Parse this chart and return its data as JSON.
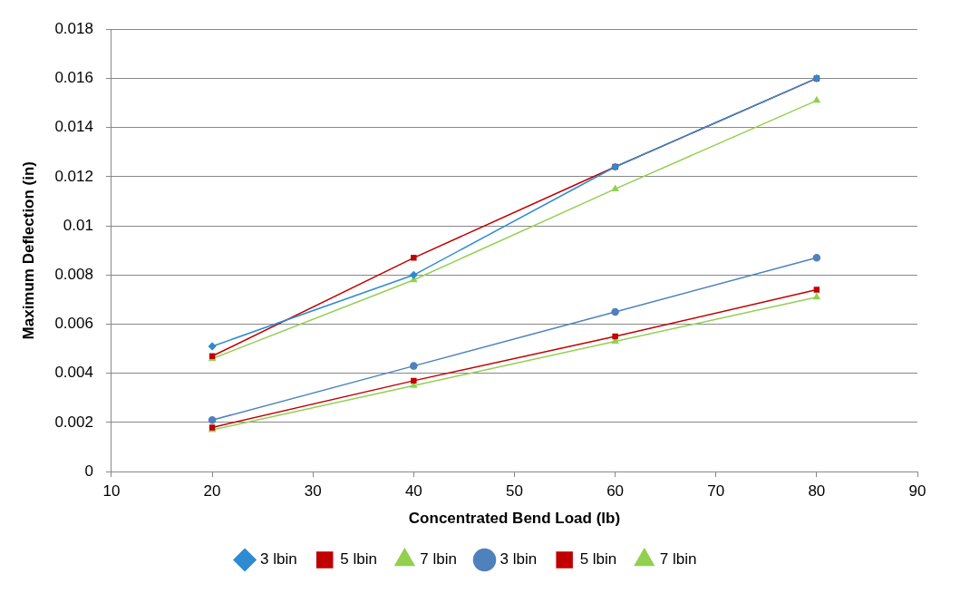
{
  "chart_data": {
    "type": "line",
    "xlabel": "Concentrated Bend Load (lb)",
    "ylabel": "Maximum Deflection (in)",
    "x": [
      20,
      40,
      60,
      80
    ],
    "series": [
      {
        "name": "3 lbin",
        "color": "#2e8bd0",
        "marker": "diamond",
        "values": [
          0.0051,
          0.008,
          0.0124,
          0.016
        ]
      },
      {
        "name": "5 lbin",
        "color": "#c00000",
        "marker": "square",
        "values": [
          0.0047,
          0.0087,
          0.0124,
          0.016
        ]
      },
      {
        "name": "7 lbin",
        "color": "#92d050",
        "marker": "triangle",
        "values": [
          0.0046,
          0.0078,
          0.0115,
          0.0151
        ]
      },
      {
        "name": "3 lbin",
        "color": "#4f81bd",
        "marker": "circle",
        "values": [
          0.0021,
          0.0043,
          0.0065,
          0.0087
        ]
      },
      {
        "name": "5 lbin",
        "color": "#c00000",
        "marker": "square",
        "values": [
          0.0018,
          0.0037,
          0.0055,
          0.0074
        ]
      },
      {
        "name": "7 lbin",
        "color": "#92d050",
        "marker": "triangle",
        "values": [
          0.0017,
          0.0035,
          0.0053,
          0.0071
        ]
      }
    ],
    "xlim": [
      10,
      90
    ],
    "xticks": [
      10,
      20,
      30,
      40,
      50,
      60,
      70,
      80,
      90
    ],
    "ylim": [
      0,
      0.018
    ],
    "yticks": [
      0,
      0.002,
      0.004,
      0.006,
      0.008,
      0.01,
      0.012,
      0.014,
      0.016,
      0.018
    ],
    "grid": "y",
    "legend": "bottom",
    "line_style": "solid"
  }
}
